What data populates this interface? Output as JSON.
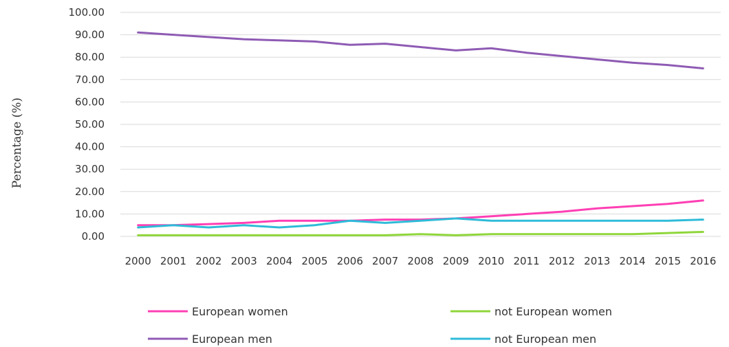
{
  "chart_data": {
    "type": "line",
    "title": "",
    "xlabel": "",
    "ylabel": "Percentage (%)",
    "ylim": [
      0,
      100
    ],
    "yticks": [
      "0.00",
      "10.00",
      "20.00",
      "30.00",
      "40.00",
      "50.00",
      "60.00",
      "70.00",
      "80.00",
      "90.00",
      "100.00"
    ],
    "grid": true,
    "legend_position": "bottom",
    "x": [
      "2000",
      "2001",
      "2002",
      "2003",
      "2004",
      "2005",
      "2006",
      "2007",
      "2008",
      "2009",
      "2010",
      "2011",
      "2012",
      "2013",
      "2014",
      "2015",
      "2016"
    ],
    "series": [
      {
        "name": "European women",
        "color": "#ff3fb4",
        "values": [
          5.0,
          5.0,
          5.5,
          6.0,
          7.0,
          7.0,
          7.0,
          7.5,
          7.5,
          8.0,
          9.0,
          10.0,
          11.0,
          12.5,
          13.5,
          14.5,
          16.0
        ]
      },
      {
        "name": "not European women",
        "color": "#8fd63a",
        "values": [
          0.5,
          0.5,
          0.5,
          0.5,
          0.5,
          0.5,
          0.5,
          0.5,
          1.0,
          0.5,
          1.0,
          1.0,
          1.0,
          1.0,
          1.0,
          1.5,
          2.0
        ]
      },
      {
        "name": "European men",
        "color": "#8e5bb4",
        "values": [
          91.0,
          90.0,
          89.0,
          88.0,
          87.5,
          87.0,
          85.5,
          86.0,
          84.5,
          83.0,
          84.0,
          82.0,
          80.5,
          79.0,
          77.5,
          76.5,
          75.0
        ]
      },
      {
        "name": "not European men",
        "color": "#2ebbd8",
        "values": [
          4.0,
          5.0,
          4.0,
          5.0,
          4.0,
          5.0,
          7.0,
          6.0,
          7.0,
          8.0,
          7.0,
          7.0,
          7.0,
          7.0,
          7.0,
          7.0,
          7.5
        ]
      }
    ]
  }
}
